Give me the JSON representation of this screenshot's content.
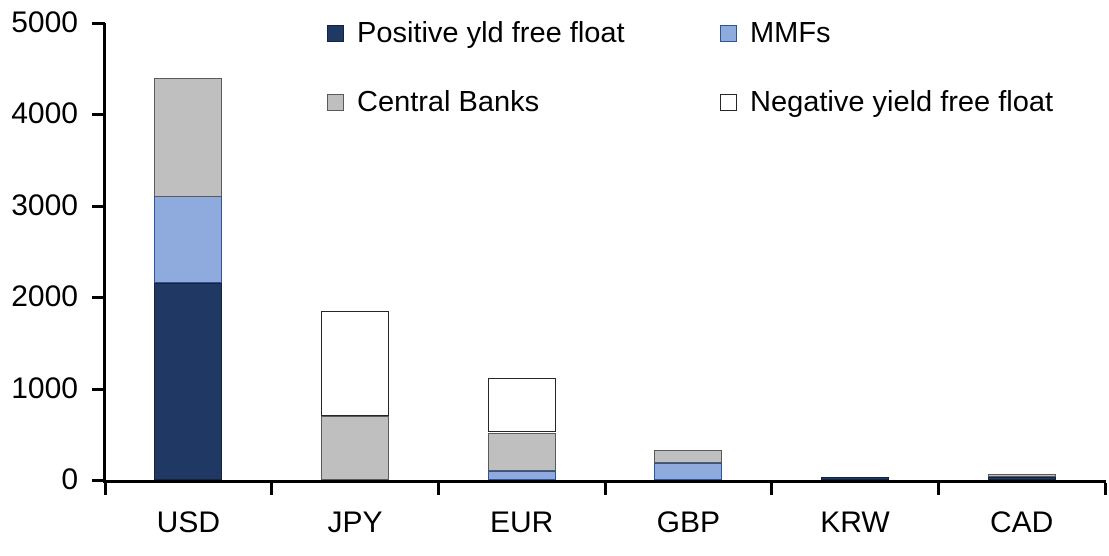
{
  "chart_data": {
    "type": "bar",
    "stacked": true,
    "title": "",
    "xlabel": "",
    "ylabel": "",
    "categories": [
      "USD",
      "JPY",
      "EUR",
      "GBP",
      "KRW",
      "CAD"
    ],
    "series": [
      {
        "name": "Positive yld free float",
        "fill": "#1F3864",
        "border": "#15233C",
        "values": [
          2150,
          0,
          0,
          0,
          35,
          30
        ]
      },
      {
        "name": "MMFs",
        "fill": "#8FAADC",
        "border": "#2F5496",
        "values": [
          950,
          0,
          100,
          190,
          0,
          0
        ]
      },
      {
        "name": "Central Banks",
        "fill": "#BFBFBF",
        "border": "#595959",
        "values": [
          1300,
          700,
          420,
          140,
          0,
          30
        ]
      },
      {
        "name": "Negative yield free float",
        "fill": "#FFFFFF",
        "border": "#262626",
        "values": [
          0,
          1150,
          590,
          0,
          0,
          0
        ]
      }
    ],
    "totals": [
      4400,
      1850,
      1110,
      330,
      35,
      60
    ],
    "ylim": [
      0,
      5000
    ],
    "yticks": [
      0,
      1000,
      2000,
      3000,
      4000,
      5000
    ],
    "grid": false,
    "legend_position": "top",
    "legend_rows": [
      [
        "Positive yld free float",
        "MMFs"
      ],
      [
        "Central Banks",
        "Negative yield free float"
      ]
    ],
    "axis_color": "#000000"
  }
}
